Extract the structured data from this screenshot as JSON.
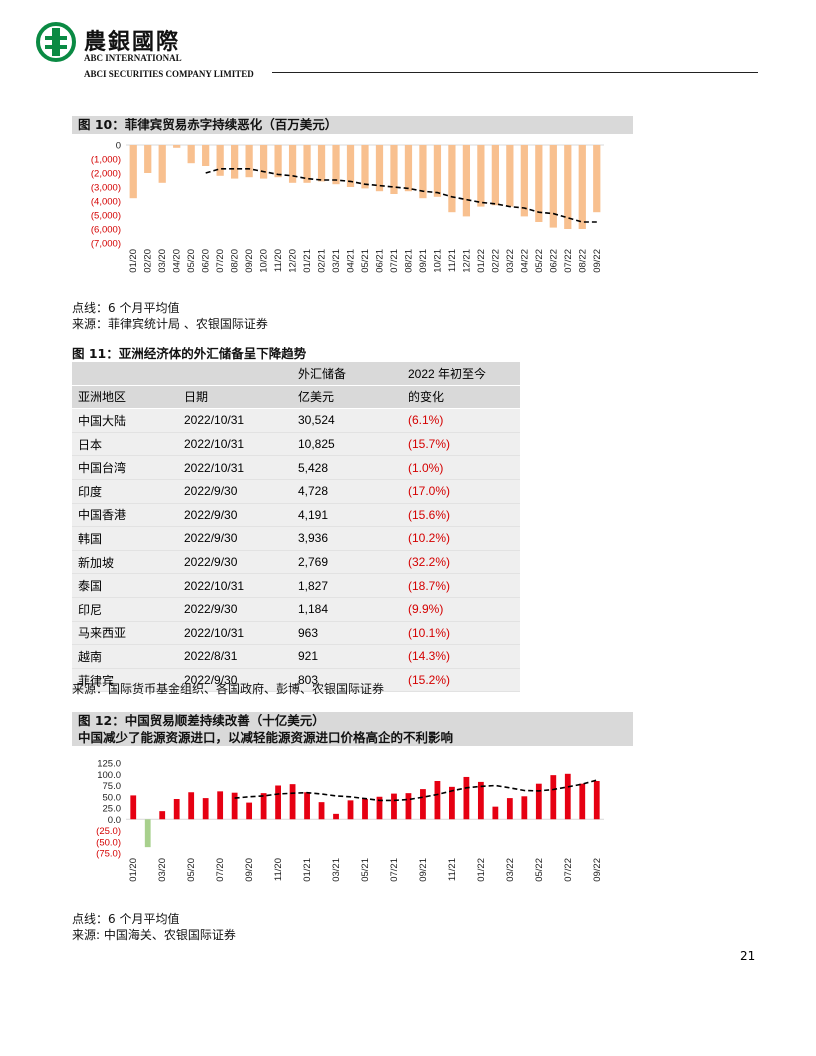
{
  "header": {
    "company_cn": "農銀國際",
    "company_en_1": "ABC INTERNATIONAL",
    "company_en_2": "ABCI SECURITIES COMPANY LIMITED"
  },
  "colors": {
    "brand_green": "#0a8a43",
    "bar_orange": "#f8c08f",
    "bar_red": "#e60012",
    "bar_green": "#a8d08d",
    "negative_text": "#d40000"
  },
  "fig10": {
    "title": "图 10：菲律宾贸易赤字持续恶化（百万美元）",
    "note": "点线：6 个月平均值",
    "source": "来源：菲律宾统计局 、农银国际证券",
    "chart_data": {
      "type": "bar",
      "categories": [
        "01/20",
        "02/20",
        "03/20",
        "04/20",
        "05/20",
        "06/20",
        "07/20",
        "08/20",
        "09/20",
        "10/20",
        "11/20",
        "12/20",
        "01/21",
        "02/21",
        "03/21",
        "04/21",
        "05/21",
        "06/21",
        "07/21",
        "08/21",
        "09/21",
        "10/21",
        "11/21",
        "12/21",
        "01/22",
        "02/22",
        "03/22",
        "04/22",
        "05/22",
        "06/22",
        "07/22",
        "08/22",
        "09/22"
      ],
      "tick_labels": [
        "0",
        "(1,000)",
        "(2,000)",
        "(3,000)",
        "(4,000)",
        "(5,000)",
        "(6,000)",
        "(7,000)"
      ],
      "series": [
        {
          "values": [
            -3800,
            -2000,
            -2700,
            -200,
            -1300,
            -1500,
            -2200,
            -2400,
            -2300,
            -2400,
            -2300,
            -2700,
            -2700,
            -2600,
            -2800,
            -3000,
            -3100,
            -3300,
            -3500,
            -3300,
            -3800,
            -3700,
            -4800,
            -5100,
            -4400,
            -4300,
            -4400,
            -5100,
            -5500,
            -5900,
            -6000,
            -6000,
            -4800
          ]
        },
        {
          "values": [
            null,
            null,
            null,
            null,
            null,
            -2000,
            -1700,
            -1700,
            -1700,
            -1900,
            -2100,
            -2200,
            -2400,
            -2500,
            -2500,
            -2600,
            -2800,
            -2900,
            -3000,
            -3100,
            -3300,
            -3400,
            -3700,
            -3900,
            -4100,
            -4200,
            -4400,
            -4500,
            -4800,
            -4900,
            -5200,
            -5500,
            -5500
          ]
        }
      ],
      "ylim": [
        -7000,
        0
      ]
    }
  },
  "fig11": {
    "title": "图 11：亚洲经济体的外汇储备呈下降趋势",
    "header_top": [
      "",
      "",
      "外汇储备",
      "2022 年初至今"
    ],
    "header_bottom": [
      "亚洲地区",
      "日期",
      "亿美元",
      "的变化"
    ],
    "rows": [
      [
        "中国大陆",
        "2022/10/31",
        "30,524",
        "(6.1%)"
      ],
      [
        "日本",
        "2022/10/31",
        "10,825",
        "(15.7%)"
      ],
      [
        "中国台湾",
        "2022/10/31",
        "5,428",
        "(1.0%)"
      ],
      [
        "印度",
        "2022/9/30",
        "4,728",
        "(17.0%)"
      ],
      [
        "中国香港",
        "2022/9/30",
        "4,191",
        "(15.6%)"
      ],
      [
        "韩国",
        "2022/9/30",
        "3,936",
        "(10.2%)"
      ],
      [
        "新加坡",
        "2022/9/30",
        "2,769",
        "(32.2%)"
      ],
      [
        "泰国",
        "2022/10/31",
        "1,827",
        "(18.7%)"
      ],
      [
        "印尼",
        "2022/9/30",
        "1,184",
        "(9.9%)"
      ],
      [
        "马来西亚",
        "2022/10/31",
        "963",
        "(10.1%)"
      ],
      [
        "越南",
        "2022/8/31",
        "921",
        "(14.3%)"
      ],
      [
        "菲律宾",
        "2022/9/30",
        "803",
        "(15.2%)"
      ]
    ],
    "source": "来源：国际货币基金组织、各国政府、彭博、农银国际证券"
  },
  "fig12": {
    "title": "图 12：中国贸易顺差持续改善（十亿美元）",
    "subtitle": "中国减少了能源资源进口，以减轻能源资源进口价格高企的不利影响",
    "note": "点线：6 个月平均值",
    "source": "来源: 中国海关、农银国际证券",
    "chart_data": {
      "type": "bar",
      "categories": [
        "01/20",
        "02/20",
        "03/20",
        "04/20",
        "05/20",
        "06/20",
        "07/20",
        "08/20",
        "09/20",
        "10/20",
        "11/20",
        "12/20",
        "01/21",
        "02/21",
        "03/21",
        "04/21",
        "05/21",
        "06/21",
        "07/21",
        "08/21",
        "09/21",
        "10/21",
        "11/21",
        "12/21",
        "01/22",
        "02/22",
        "03/22",
        "04/22",
        "05/22",
        "06/22",
        "07/22",
        "08/22",
        "09/22"
      ],
      "tick_labels": [
        "125.0",
        "100.0",
        "75.0",
        "50.0",
        "25.0",
        "0.0",
        "(25.0)",
        "(50.0)",
        "(75.0)"
      ],
      "series": [
        {
          "values": [
            53,
            -62,
            18,
            45,
            60,
            47,
            62,
            59,
            37,
            58,
            75,
            78,
            60,
            38,
            12,
            42,
            45,
            50,
            57,
            58,
            67,
            85,
            72,
            94,
            83,
            28,
            47,
            51,
            79,
            98,
            101,
            79,
            85
          ]
        },
        {
          "values": [
            null,
            null,
            null,
            null,
            null,
            null,
            null,
            47,
            50,
            52,
            56,
            58,
            59,
            56,
            52,
            50,
            46,
            42,
            42,
            44,
            49,
            55,
            63,
            70,
            73,
            75,
            70,
            64,
            63,
            66,
            72,
            78,
            87
          ]
        }
      ],
      "ylim": [
        -75,
        125
      ]
    }
  },
  "page_number": "21"
}
